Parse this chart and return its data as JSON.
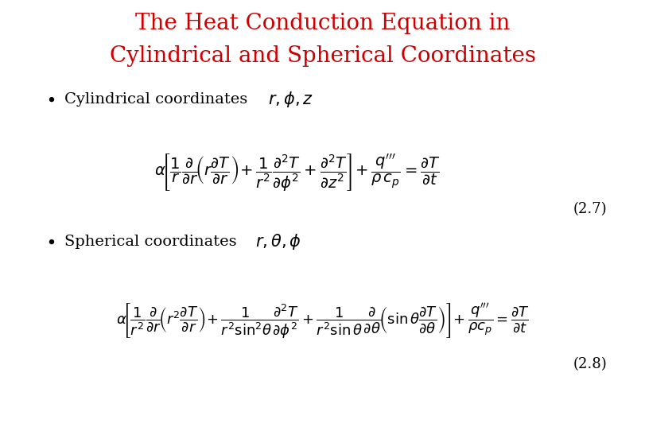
{
  "title_line1": "The Heat Conduction Equation in",
  "title_line2": "Cylindrical and Spherical Coordinates",
  "title_color": "#CC0000",
  "title_fontsize": 20,
  "text_color": "#000000",
  "bg_color": "#FFFFFF",
  "eq_num_cyl": "(2.7)",
  "eq_num_sph": "(2.8)",
  "label_fontsize": 14,
  "eq_fontsize_cyl": 14,
  "eq_fontsize_sph": 13
}
